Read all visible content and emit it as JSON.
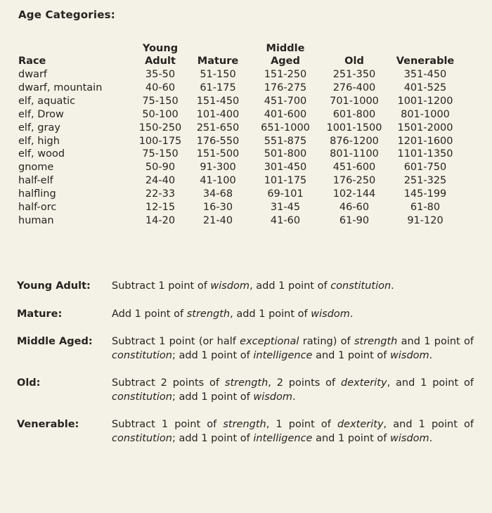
{
  "title": "Age Categories:",
  "table": {
    "headers": {
      "race": "Race",
      "young_adult": [
        "Young",
        "Adult"
      ],
      "mature": "Mature",
      "middle_aged": [
        "Middle",
        "Aged"
      ],
      "old": "Old",
      "venerable": "Venerable"
    },
    "rows": [
      {
        "race": "dwarf",
        "young_adult": "35-50",
        "mature": "51-150",
        "middle_aged": "151-250",
        "old": "251-350",
        "venerable": "351-450"
      },
      {
        "race": "dwarf, mountain",
        "young_adult": "40-60",
        "mature": "61-175",
        "middle_aged": "176-275",
        "old": "276-400",
        "venerable": "401-525"
      },
      {
        "race": "elf, aquatic",
        "young_adult": "75-150",
        "mature": "151-450",
        "middle_aged": "451-700",
        "old": "701-1000",
        "venerable": "1001-1200"
      },
      {
        "race": "elf, Drow",
        "young_adult": "50-100",
        "mature": "101-400",
        "middle_aged": "401-600",
        "old": "601-800",
        "venerable": "801-1000"
      },
      {
        "race": "elf, gray",
        "young_adult": "150-250",
        "mature": "251-650",
        "middle_aged": "651-1000",
        "old": "1001-1500",
        "venerable": "1501-2000"
      },
      {
        "race": "elf, high",
        "young_adult": "100-175",
        "mature": "176-550",
        "middle_aged": "551-875",
        "old": "876-1200",
        "venerable": "1201-1600"
      },
      {
        "race": "elf, wood",
        "young_adult": "75-150",
        "mature": "151-500",
        "middle_aged": "501-800",
        "old": "801-1100",
        "venerable": "1101-1350"
      },
      {
        "race": "gnome",
        "young_adult": "50-90",
        "mature": "91-300",
        "middle_aged": "301-450",
        "old": "451-600",
        "venerable": "601-750"
      },
      {
        "race": "half-elf",
        "young_adult": "24-40",
        "mature": "41-100",
        "middle_aged": "101-175",
        "old": "176-250",
        "venerable": "251-325"
      },
      {
        "race": "halfling",
        "young_adult": "22-33",
        "mature": "34-68",
        "middle_aged": "69-101",
        "old": "102-144",
        "venerable": "145-199"
      },
      {
        "race": "half-orc",
        "young_adult": "12-15",
        "mature": "16-30",
        "middle_aged": "31-45",
        "old": "46-60",
        "venerable": "61-80"
      },
      {
        "race": "human",
        "young_adult": "14-20",
        "mature": "21-40",
        "middle_aged": "41-60",
        "old": "61-90",
        "venerable": "91-120"
      }
    ]
  },
  "effects": [
    {
      "term": "Young Adult:",
      "parts": [
        {
          "t": "Subtract 1 point of "
        },
        {
          "t": "wisdom",
          "i": true
        },
        {
          "t": ", add 1 point of "
        },
        {
          "t": "constitution",
          "i": true
        },
        {
          "t": "."
        }
      ]
    },
    {
      "term": "Mature:",
      "parts": [
        {
          "t": "Add 1 point of "
        },
        {
          "t": "strength",
          "i": true
        },
        {
          "t": ", add 1 point of "
        },
        {
          "t": "wisdom",
          "i": true
        },
        {
          "t": "."
        }
      ]
    },
    {
      "term": "Middle Aged:",
      "parts": [
        {
          "t": "Subtract 1 point (or half "
        },
        {
          "t": "exceptional",
          "i": true
        },
        {
          "t": " rating) of "
        },
        {
          "t": "strength",
          "i": true
        },
        {
          "t": " and 1 point of "
        },
        {
          "t": "constitution",
          "i": true
        },
        {
          "t": "; add 1 point of "
        },
        {
          "t": "intelligence",
          "i": true
        },
        {
          "t": " and 1 point of "
        },
        {
          "t": "wisdom",
          "i": true
        },
        {
          "t": "."
        }
      ]
    },
    {
      "term": "Old:",
      "parts": [
        {
          "t": "Subtract 2 points of "
        },
        {
          "t": "strength",
          "i": true
        },
        {
          "t": ", 2 points of "
        },
        {
          "t": "dexterity",
          "i": true
        },
        {
          "t": ", and 1 point of "
        },
        {
          "t": "constitution",
          "i": true
        },
        {
          "t": "; add 1 point of "
        },
        {
          "t": "wisdom",
          "i": true
        },
        {
          "t": "."
        }
      ]
    },
    {
      "term": "Venerable:",
      "parts": [
        {
          "t": "Subtract 1 point of "
        },
        {
          "t": "strength",
          "i": true
        },
        {
          "t": ", 1 point of "
        },
        {
          "t": "dexterity",
          "i": true
        },
        {
          "t": ", and 1 point of "
        },
        {
          "t": "constitution",
          "i": true
        },
        {
          "t": "; add 1 point of "
        },
        {
          "t": "intelligence",
          "i": true
        },
        {
          "t": " and 1 point of "
        },
        {
          "t": "wisdom",
          "i": true
        },
        {
          "t": "."
        }
      ]
    }
  ]
}
